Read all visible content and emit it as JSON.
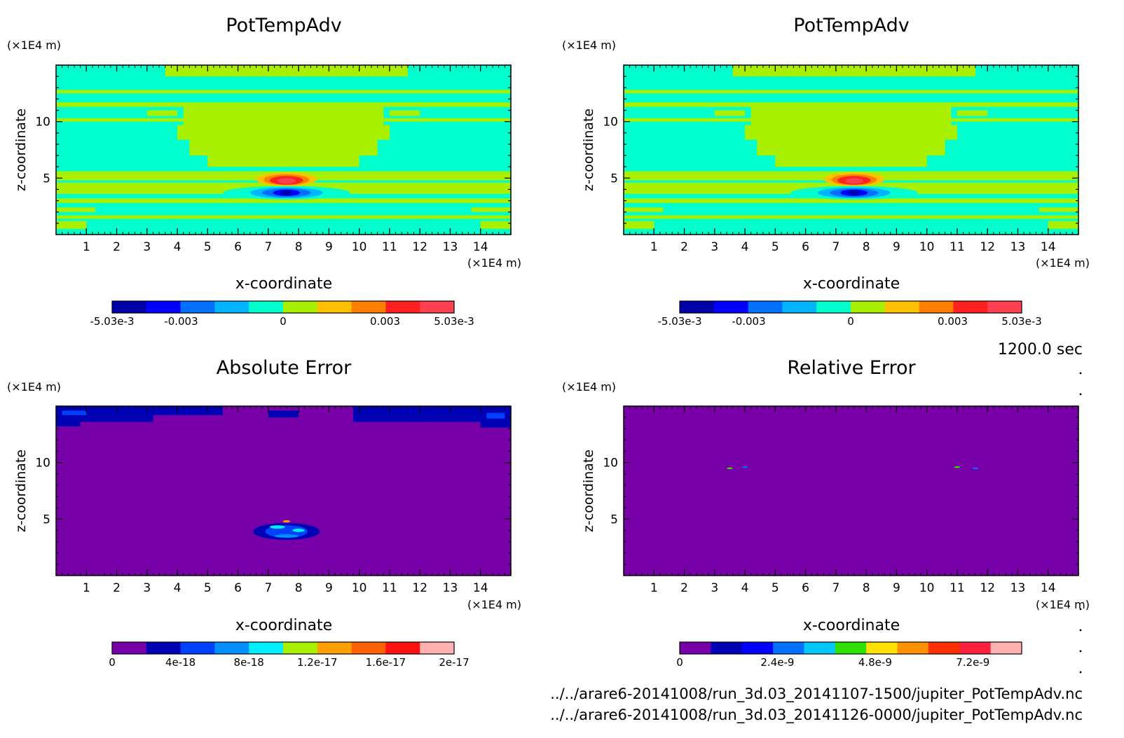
{
  "figure": {
    "time_label": "1200.0 sec",
    "files": [
      "../../arare6-20141008/run_3d.03_20141107-1500/jupiter_PotTempAdv.nc",
      "../../arare6-20141008/run_3d.03_20141126-0000/jupiter_PotTempAdv.nc"
    ]
  },
  "chart_data": [
    {
      "type": "heatmap",
      "title": "PotTempAdv",
      "xlabel": "x-coordinate",
      "ylabel": "z-coordinate",
      "x_unit": "(×1E4 m)",
      "z_unit": "(×1E4 m)",
      "xlim": [
        0,
        15
      ],
      "ylim": [
        0,
        15
      ],
      "x_ticks": [
        1,
        2,
        3,
        4,
        5,
        6,
        7,
        8,
        9,
        10,
        11,
        12,
        13,
        14
      ],
      "y_ticks": [
        5,
        10
      ],
      "field_description": "background near 0; dipole centred x≈7.6, z≈4.2 (positive above, negative below)",
      "colorbar": {
        "min": -0.00503,
        "max": 0.00503,
        "tick_values": [
          -0.00503,
          -0.003,
          0,
          0.003,
          0.00503
        ],
        "tick_labels": [
          "-5.03e-3",
          "-0.003",
          "0",
          "0.003",
          "5.03e-3"
        ],
        "colors": [
          "#0000a8",
          "#0000ff",
          "#0070ff",
          "#00b4ff",
          "#00ffcc",
          "#a8f000",
          "#ffc000",
          "#ff8000",
          "#ff2020",
          "#ff4050"
        ]
      }
    },
    {
      "type": "heatmap",
      "title": "PotTempAdv",
      "xlabel": "x-coordinate",
      "ylabel": "z-coordinate",
      "x_unit": "(×1E4 m)",
      "z_unit": "(×1E4 m)",
      "xlim": [
        0,
        15
      ],
      "ylim": [
        0,
        15
      ],
      "x_ticks": [
        1,
        2,
        3,
        4,
        5,
        6,
        7,
        8,
        9,
        10,
        11,
        12,
        13,
        14
      ],
      "y_ticks": [
        5,
        10
      ],
      "field_description": "identical to first panel",
      "colorbar": {
        "min": -0.00503,
        "max": 0.00503,
        "tick_values": [
          -0.00503,
          -0.003,
          0,
          0.003,
          0.00503
        ],
        "tick_labels": [
          "-5.03e-3",
          "-0.003",
          "0",
          "0.003",
          "5.03e-3"
        ],
        "colors": [
          "#0000a8",
          "#0000ff",
          "#0070ff",
          "#00b4ff",
          "#00ffcc",
          "#a8f000",
          "#ffc000",
          "#ff8000",
          "#ff2020",
          "#ff4050"
        ]
      }
    },
    {
      "type": "heatmap",
      "title": "Absolute Error",
      "xlabel": "x-coordinate",
      "ylabel": "z-coordinate",
      "x_unit": "(×1E4 m)",
      "z_unit": "(×1E4 m)",
      "xlim": [
        0,
        15
      ],
      "ylim": [
        0,
        15
      ],
      "x_ticks": [
        1,
        2,
        3,
        4,
        5,
        6,
        7,
        8,
        9,
        10,
        11,
        12,
        13,
        14
      ],
      "y_ticks": [
        5,
        10
      ],
      "field_description": "mostly 0; small errors near top boundary and near x≈7.5, z≈4",
      "colorbar": {
        "min": 0,
        "max": 2e-17,
        "tick_values": [
          0,
          4e-18,
          8e-18,
          1.2e-17,
          1.6e-17,
          2e-17
        ],
        "tick_labels": [
          "0",
          "4e-18",
          "8e-18",
          "1.2e-17",
          "1.6e-17",
          "2e-17"
        ],
        "colors": [
          "#7800a8",
          "#0000b4",
          "#0040ff",
          "#0090ff",
          "#00f0ff",
          "#a8f000",
          "#ffa000",
          "#ff6000",
          "#ff1010",
          "#ffb0b0"
        ]
      }
    },
    {
      "type": "heatmap",
      "title": "Relative Error",
      "xlabel": "x-coordinate",
      "ylabel": "z-coordinate",
      "x_unit": "(×1E4 m)",
      "z_unit": "(×1E4 m)",
      "xlim": [
        0,
        15
      ],
      "ylim": [
        0,
        15
      ],
      "x_ticks": [
        1,
        2,
        3,
        4,
        5,
        6,
        7,
        8,
        9,
        10,
        11,
        12,
        13,
        14
      ],
      "y_ticks": [
        5,
        10
      ],
      "field_description": "0 everywhere except tiny spots near (3.5,9.5),(4.0,9.6),(11.0,9.6),(11.6,9.5)",
      "colorbar": {
        "min": 0,
        "max": 8.4e-09,
        "tick_values": [
          0,
          2.4e-09,
          4.8e-09,
          7.2e-09
        ],
        "tick_labels": [
          "0",
          "2.4e-9",
          "4.8e-9",
          "7.2e-9"
        ],
        "colors": [
          "#7800a8",
          "#0000b4",
          "#0000ff",
          "#0070ff",
          "#00c8ff",
          "#30e000",
          "#ffe000",
          "#ff9000",
          "#ff3000",
          "#ff2040",
          "#ffb0b0"
        ]
      }
    }
  ]
}
